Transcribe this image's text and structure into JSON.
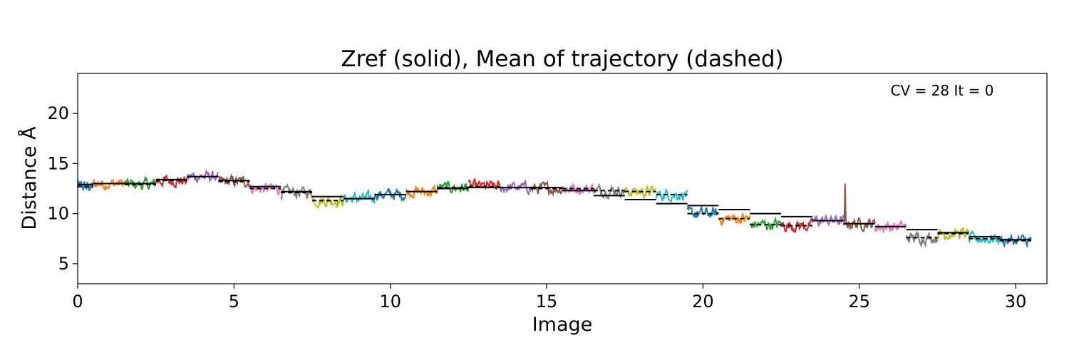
{
  "chart_data": {
    "type": "line",
    "title": "Zref (solid), Mean of trajectory (dashed)",
    "xlabel": "Image",
    "ylabel": "Distance Å",
    "annotation": "CV = 28 It = 0",
    "xlim": [
      0,
      31
    ],
    "ylim": [
      3,
      24
    ],
    "xticks": [
      0,
      5,
      10,
      15,
      20,
      25,
      30
    ],
    "yticks": [
      5,
      10,
      15,
      20
    ],
    "grid": false,
    "legend": "none",
    "series_colors": [
      "#1f77b4",
      "#ff7f0e",
      "#2ca02c",
      "#d62728",
      "#9467bd",
      "#8c564b",
      "#e377c2",
      "#7f7f7f",
      "#bcbd22",
      "#17becf"
    ],
    "images": [
      0,
      1,
      2,
      3,
      4,
      5,
      6,
      7,
      8,
      9,
      10,
      11,
      12,
      13,
      14,
      15,
      16,
      17,
      18,
      19,
      20,
      21,
      22,
      23,
      24,
      25,
      26,
      27,
      28,
      29,
      30
    ],
    "zref": [
      12.9,
      13.0,
      13.0,
      13.4,
      13.7,
      13.3,
      12.7,
      12.2,
      11.7,
      11.5,
      11.9,
      12.2,
      12.5,
      12.6,
      12.6,
      12.6,
      12.3,
      11.8,
      11.4,
      11.0,
      10.8,
      10.4,
      10.0,
      9.7,
      9.3,
      9.0,
      8.7,
      8.4,
      8.1,
      7.7,
      7.4
    ],
    "trajectory_mean": [
      12.7,
      13.0,
      12.9,
      13.3,
      13.7,
      13.2,
      12.5,
      12.1,
      11.3,
      11.5,
      11.9,
      12.2,
      12.6,
      12.7,
      12.6,
      12.5,
      12.5,
      12.3,
      12.2,
      11.9,
      10.0,
      9.5,
      8.9,
      8.8,
      9.3,
      9.0,
      8.7,
      7.6,
      8.0,
      7.5,
      7.3
    ]
  }
}
